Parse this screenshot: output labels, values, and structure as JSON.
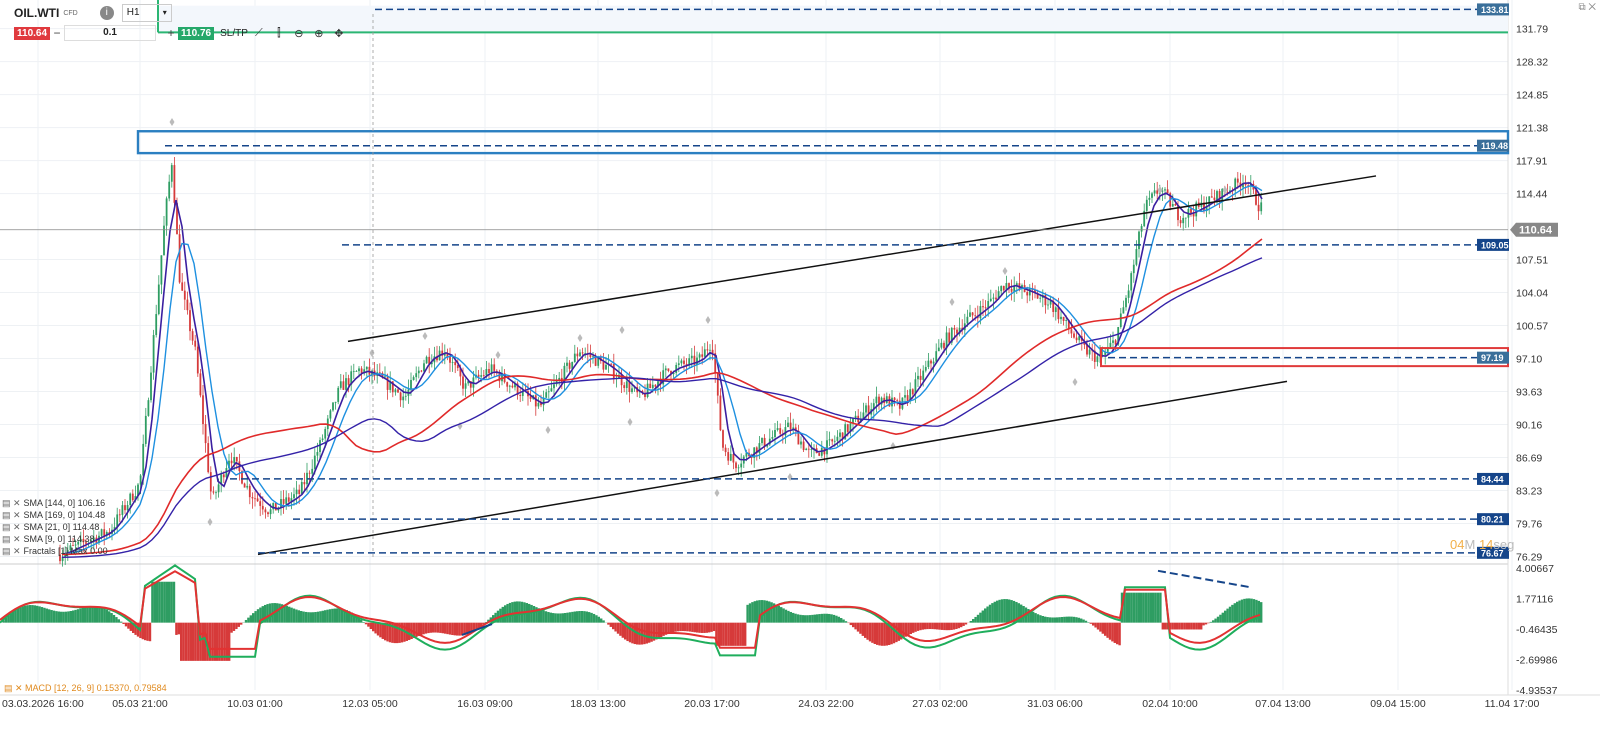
{
  "toolbar": {
    "symbol": "OIL.WTI",
    "symbol_tag": "CFD",
    "info_icon": "i",
    "timeframe": "H1",
    "sell_price": "110.64",
    "volume": "0.1",
    "buy_price": "110.76",
    "sltp_label": "SL/TP",
    "icons": [
      "line-chart-icon",
      "candles-icon",
      "zoom-out-icon",
      "zoom-in-icon",
      "crosshair-icon"
    ]
  },
  "price_axis": {
    "ticks": [
      "131.79",
      "128.32",
      "124.85",
      "121.38",
      "117.91",
      "114.44",
      "107.51",
      "104.04",
      "100.57",
      "97.10",
      "93.63",
      "90.16",
      "86.69",
      "83.23",
      "79.76",
      "76.29"
    ],
    "range": [
      75.6,
      134.8
    ]
  },
  "price_badges": {
    "b13381": {
      "label": "133.81",
      "value": 133.81,
      "color": "#3a6f9a"
    },
    "b11948": {
      "label": "119.48",
      "value": 119.48,
      "color": "#3a6f9a"
    },
    "current": {
      "label": "110.64",
      "value": 110.64,
      "color": "#888888"
    },
    "b10905": {
      "label": "109.05",
      "value": 109.05,
      "color": "#15458a"
    },
    "b9719": {
      "label": "97.19",
      "value": 97.19,
      "color": "#3a6f9a"
    },
    "b8444": {
      "label": "84.44",
      "value": 84.44,
      "color": "#15458a"
    },
    "b8021": {
      "label": "80.21",
      "value": 80.21,
      "color": "#15458a"
    },
    "b7667": {
      "label": "76.67",
      "value": 76.67,
      "color": "#15458a"
    }
  },
  "macd_axis": {
    "ticks": [
      "4.00667",
      "1.77116",
      "-0.46435",
      "-2.69986",
      "-4.93537"
    ],
    "range": [
      -4.93537,
      4.00667
    ]
  },
  "time_axis": [
    "03.03.2026 16:00",
    "05.03 21:00",
    "10.03 01:00",
    "12.03 05:00",
    "16.03 09:00",
    "18.03 13:00",
    "20.03 17:00",
    "24.03 22:00",
    "27.03 02:00",
    "31.03 06:00",
    "02.04 10:00",
    "07.04 13:00",
    "09.04 15:00",
    "11.04 17:00"
  ],
  "legend": [
    "SMA [144, 0] 106.16",
    "SMA [169, 0] 104.48",
    "SMA [21, 0] 114.48",
    "SMA [9, 0] 114.38",
    "Fractals [1] Max 0.00"
  ],
  "macd_label": "MACD [12, 26, 9] 0.15370, 0.79584",
  "countdown": {
    "minutes": "04",
    "m_unit": "M",
    "seconds": "14",
    "s_unit": "seg"
  },
  "colors": {
    "up": "#2e9d62",
    "down": "#d63a3a",
    "sma9": "#3b1fa0",
    "sma21": "#1e90e0",
    "sma144": "#e02a2a",
    "sma169": "#3422a8",
    "level": "#15458a",
    "macd_line": "#1fae5c",
    "signal_line": "#e23232"
  }
}
